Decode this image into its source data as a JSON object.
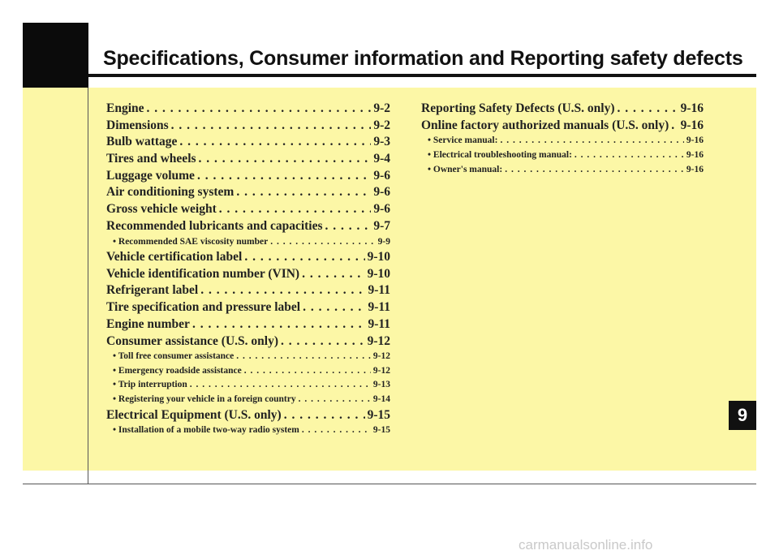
{
  "header": {
    "title": "Specifications, Consumer information and Reporting safety defects"
  },
  "chapter_tab": "9",
  "toc_left": [
    {
      "level": "main",
      "text": "Engine",
      "page": "9-2"
    },
    {
      "level": "main",
      "text": "Dimensions",
      "page": "9-2"
    },
    {
      "level": "main",
      "text": "Bulb wattage",
      "page": "9-3"
    },
    {
      "level": "main",
      "text": "Tires and wheels",
      "page": "9-4"
    },
    {
      "level": "main",
      "text": "Luggage volume",
      "page": "9-6"
    },
    {
      "level": "main",
      "text": "Air conditioning system",
      "page": "9-6"
    },
    {
      "level": "main",
      "text": "Gross vehicle weight",
      "page": "9-6"
    },
    {
      "level": "main",
      "text": "Recommended lubricants and capacities",
      "page": "9-7"
    },
    {
      "level": "sub",
      "text": "• Recommended SAE viscosity number",
      "page": "9-9"
    },
    {
      "level": "main",
      "text": "Vehicle certification label",
      "page": "9-10"
    },
    {
      "level": "main",
      "text": "Vehicle identification number (VIN)",
      "page": "9-10"
    },
    {
      "level": "main",
      "text": "Refrigerant label",
      "page": "9-11"
    },
    {
      "level": "main",
      "text": "Tire specification and pressure label",
      "page": "9-11"
    },
    {
      "level": "main",
      "text": "Engine number",
      "page": "9-11"
    },
    {
      "level": "main",
      "text": "Consumer assistance (U.S. only)",
      "page": "9-12"
    },
    {
      "level": "sub",
      "text": "• Toll free consumer assistance",
      "page": "9-12"
    },
    {
      "level": "sub",
      "text": "• Emergency roadside assistance",
      "page": "9-12"
    },
    {
      "level": "sub",
      "text": "• Trip interruption",
      "page": "9-13"
    },
    {
      "level": "sub",
      "text": "• Registering your vehicle in a foreign country",
      "page": "9-14"
    },
    {
      "level": "main",
      "text": "Electrical Equipment (U.S. only)",
      "page": "9-15"
    },
    {
      "level": "sub",
      "text": "• Installation of a mobile two-way radio system",
      "page": "9-15"
    }
  ],
  "toc_right": [
    {
      "level": "main",
      "text": "Reporting Safety Defects (U.S. only)",
      "page": "9-16"
    },
    {
      "level": "main",
      "text": "Online factory authorized manuals (U.S. only)",
      "page": "9-16"
    },
    {
      "level": "sub",
      "text": "• Service manual:",
      "page": "9-16"
    },
    {
      "level": "sub",
      "text": "• Electrical troubleshooting manual:",
      "page": "9-16"
    },
    {
      "level": "sub",
      "text": "• Owner's manual:",
      "page": "9-16"
    }
  ],
  "watermark": "carmanualsonline.info"
}
